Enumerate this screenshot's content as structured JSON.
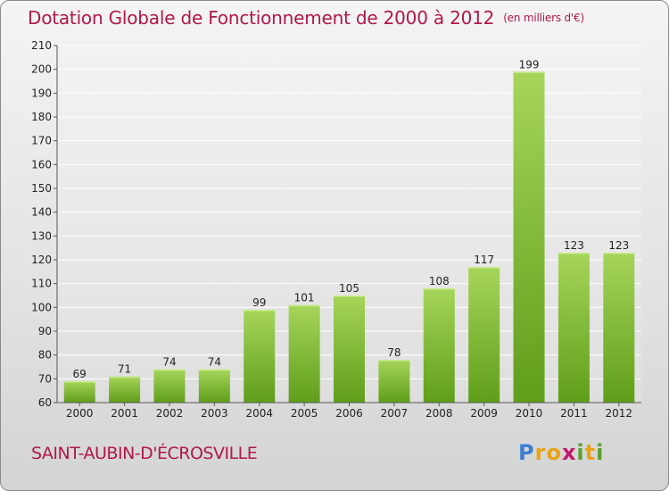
{
  "title": "Dotation Globale de Fonctionnement de 2000 à 2012",
  "subtitle": "(en milliers d'€)",
  "commune": "SAINT-AUBIN-D'ÉCROSVILLE",
  "logo": {
    "letters": [
      "P",
      "r",
      "o",
      "x",
      "i",
      "t",
      "i"
    ],
    "text": "Proxiti"
  },
  "colors": {
    "title": "#b0184a",
    "bar_top": "#a6d55a",
    "bar_bottom": "#5f9e1a",
    "grid": "#ffffff",
    "axis": "#555555"
  },
  "chart_data": {
    "type": "bar",
    "title": "Dotation Globale de Fonctionnement de 2000 à 2012",
    "subtitle": "(en milliers d'€)",
    "xlabel": "",
    "ylabel": "",
    "categories": [
      "2000",
      "2001",
      "2002",
      "2003",
      "2004",
      "2005",
      "2006",
      "2007",
      "2008",
      "2009",
      "2010",
      "2011",
      "2012"
    ],
    "values": [
      69,
      71,
      74,
      74,
      99,
      101,
      105,
      78,
      108,
      117,
      199,
      123,
      123
    ],
    "ylim": [
      60,
      210
    ],
    "yticks": [
      60,
      70,
      80,
      90,
      100,
      110,
      120,
      130,
      140,
      150,
      160,
      170,
      180,
      190,
      200,
      210
    ],
    "grid": true,
    "data_labels": true
  }
}
